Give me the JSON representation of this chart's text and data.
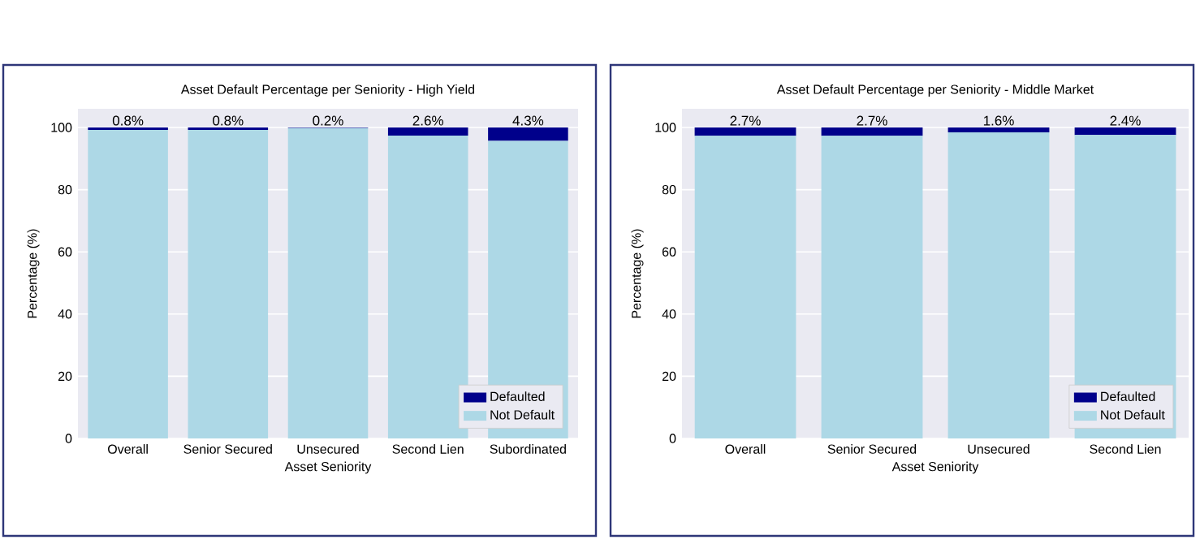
{
  "chart_data": [
    {
      "type": "bar",
      "stacked": true,
      "title": "Asset Default Percentage per Seniority - High Yield",
      "xlabel": "Asset Seniority",
      "ylabel": "Percentage (%)",
      "categories": [
        "Overall",
        "Senior Secured",
        "Unsecured",
        "Second Lien",
        "Subordinated"
      ],
      "ylim": [
        0,
        106
      ],
      "yticks": [
        0,
        20,
        40,
        60,
        80,
        100
      ],
      "grid": "y",
      "legend": "bottom right",
      "series": [
        {
          "name": "Not Default",
          "color": "#add8e6",
          "values": [
            99.2,
            99.2,
            99.8,
            97.4,
            95.7
          ]
        },
        {
          "name": "Defaulted",
          "color": "#00008b",
          "values": [
            0.8,
            0.8,
            0.2,
            2.6,
            4.3
          ],
          "value_labels": [
            "0.8%",
            "0.8%",
            "0.2%",
            "2.6%",
            "4.3%"
          ]
        }
      ]
    },
    {
      "type": "bar",
      "stacked": true,
      "title": "Asset Default Percentage per Seniority - Middle Market",
      "xlabel": "Asset Seniority",
      "ylabel": "Percentage (%)",
      "categories": [
        "Overall",
        "Senior Secured",
        "Unsecured",
        "Second Lien"
      ],
      "ylim": [
        0,
        106
      ],
      "yticks": [
        0,
        20,
        40,
        60,
        80,
        100
      ],
      "grid": "y",
      "legend": "bottom right",
      "series": [
        {
          "name": "Not Default",
          "color": "#add8e6",
          "values": [
            97.3,
            97.3,
            98.4,
            97.6
          ]
        },
        {
          "name": "Defaulted",
          "color": "#00008b",
          "values": [
            2.7,
            2.7,
            1.6,
            2.4
          ],
          "value_labels": [
            "2.7%",
            "2.7%",
            "1.6%",
            "2.4%"
          ]
        }
      ]
    }
  ]
}
